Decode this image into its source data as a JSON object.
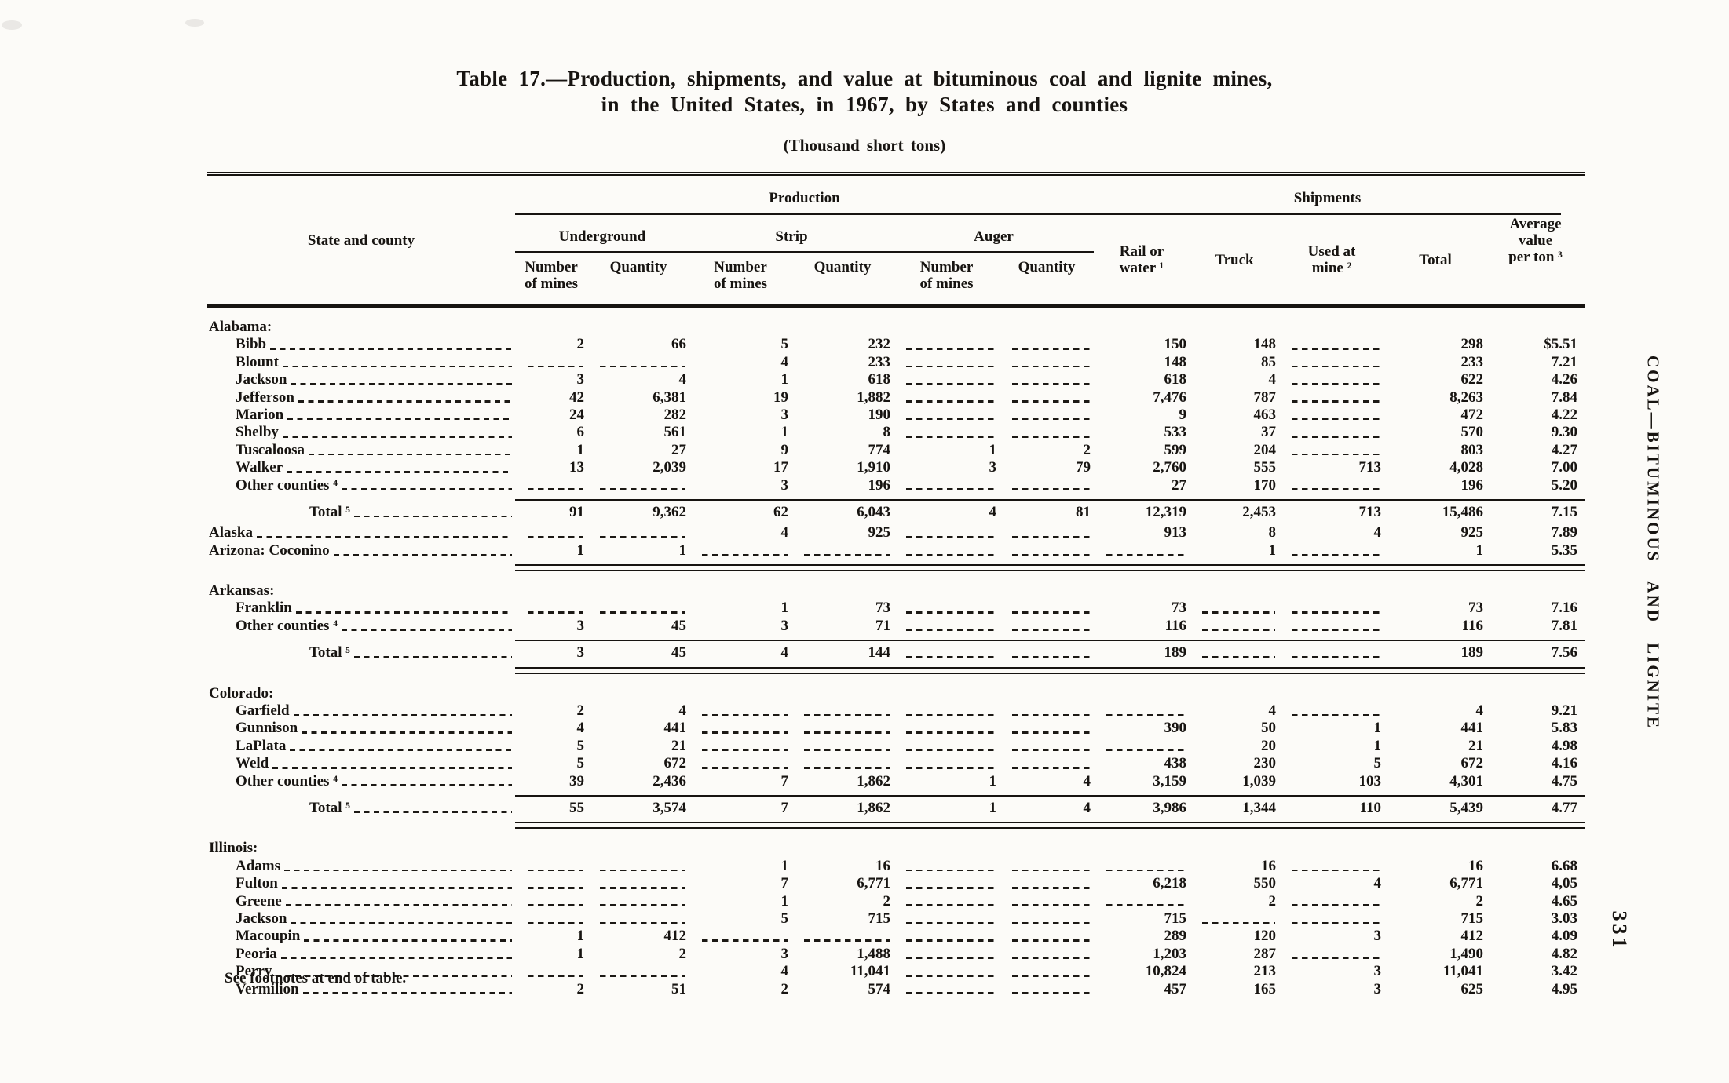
{
  "page": {
    "title_line1": "Table 17.—Production, shipments, and value at bituminous coal and lignite mines,",
    "title_line2": "in the United States, in 1967, by States and counties",
    "subtitle": "(Thousand short tons)",
    "footnote": "See footnotes at end of table.",
    "side_text": "COAL—BITUMINOUS AND LIGNITE",
    "page_number": "331"
  },
  "table": {
    "col_groups": {
      "production": "Production",
      "shipments": "Shipments"
    },
    "headers": {
      "state_county": "State and county",
      "underground": "Underground",
      "strip": "Strip",
      "auger": "Auger",
      "number_of_mines": "Number\nof mines",
      "quantity": "Quantity",
      "rail_or_water": "Rail or\nwater ¹",
      "truck": "Truck",
      "used_at_mine": "Used at\nmine ²",
      "total": "Total",
      "avg_value": "Average\nvalue\nper ton ³"
    },
    "column_keys": [
      "ug_mines",
      "ug_quantity",
      "strip_mines",
      "strip_quantity",
      "auger_mines",
      "auger_quantity",
      "rail_or_water",
      "truck",
      "used_at_mine",
      "total",
      "avg_value"
    ],
    "rows": [
      {
        "label": "Alabama:",
        "cls": "state",
        "indent": 0,
        "leader": false,
        "cells": []
      },
      {
        "label": "Bibb",
        "indent": 1,
        "leader": true,
        "cells": [
          "2",
          "66",
          "5",
          "232",
          "",
          "",
          "150",
          "148",
          "",
          "298",
          "$5.51"
        ]
      },
      {
        "label": "Blount",
        "indent": 1,
        "leader": true,
        "cells": [
          "",
          "",
          "4",
          "233",
          "",
          "",
          "148",
          "85",
          "",
          "233",
          "7.21"
        ]
      },
      {
        "label": "Jackson",
        "indent": 1,
        "leader": true,
        "cells": [
          "3",
          "4",
          "1",
          "618",
          "",
          "",
          "618",
          "4",
          "",
          "622",
          "4.26"
        ]
      },
      {
        "label": "Jefferson",
        "indent": 1,
        "leader": true,
        "cells": [
          "42",
          "6,381",
          "19",
          "1,882",
          "",
          "",
          "7,476",
          "787",
          "",
          "8,263",
          "7.84"
        ]
      },
      {
        "label": "Marion",
        "indent": 1,
        "leader": true,
        "cells": [
          "24",
          "282",
          "3",
          "190",
          "",
          "",
          "9",
          "463",
          "",
          "472",
          "4.22"
        ]
      },
      {
        "label": "Shelby",
        "indent": 1,
        "leader": true,
        "cells": [
          "6",
          "561",
          "1",
          "8",
          "",
          "",
          "533",
          "37",
          "",
          "570",
          "9.30"
        ]
      },
      {
        "label": "Tuscaloosa",
        "indent": 1,
        "leader": true,
        "cells": [
          "1",
          "27",
          "9",
          "774",
          "1",
          "2",
          "599",
          "204",
          "",
          "803",
          "4.27"
        ]
      },
      {
        "label": "Walker",
        "indent": 1,
        "leader": true,
        "cells": [
          "13",
          "2,039",
          "17",
          "1,910",
          "3",
          "79",
          "2,760",
          "555",
          "713",
          "4,028",
          "7.00"
        ]
      },
      {
        "label": "Other counties ⁴",
        "indent": 1,
        "leader": true,
        "cells": [
          "",
          "",
          "3",
          "196",
          "",
          "",
          "27",
          "170",
          "",
          "196",
          "5.20"
        ]
      },
      {
        "label": "Total ⁵",
        "cls": "total",
        "indent": 2,
        "leader": true,
        "rule_above": "single",
        "cells": [
          "91",
          "9,362",
          "62",
          "6,043",
          "4",
          "81",
          "12,319",
          "2,453",
          "713",
          "15,486",
          "7.15"
        ]
      },
      {
        "label": "Alaska",
        "indent": 0,
        "leader": true,
        "cells": [
          "",
          "",
          "4",
          "925",
          "",
          "",
          "913",
          "8",
          "4",
          "925",
          "7.89"
        ]
      },
      {
        "label": "Arizona: Coconino",
        "indent": 0,
        "leader": true,
        "rule_below": "double",
        "cells": [
          "1",
          "1",
          "",
          "",
          "",
          "",
          "",
          "1",
          "",
          "1",
          "5.35"
        ]
      },
      {
        "label": "Arkansas:",
        "cls": "state",
        "indent": 0,
        "leader": false,
        "cells": []
      },
      {
        "label": "Franklin",
        "indent": 1,
        "leader": true,
        "cells": [
          "",
          "",
          "1",
          "73",
          "",
          "",
          "73",
          "",
          "",
          "73",
          "7.16"
        ]
      },
      {
        "label": "Other counties ⁴",
        "indent": 1,
        "leader": true,
        "cells": [
          "3",
          "45",
          "3",
          "71",
          "",
          "",
          "116",
          "",
          "",
          "116",
          "7.81"
        ]
      },
      {
        "label": "Total ⁵",
        "cls": "total",
        "indent": 2,
        "leader": true,
        "rule_above": "single",
        "rule_below": "double",
        "cells": [
          "3",
          "45",
          "4",
          "144",
          "",
          "",
          "189",
          "",
          "",
          "189",
          "7.56"
        ]
      },
      {
        "label": "Colorado:",
        "cls": "state",
        "indent": 0,
        "leader": false,
        "cells": []
      },
      {
        "label": "Garfield",
        "indent": 1,
        "leader": true,
        "cells": [
          "2",
          "4",
          "",
          "",
          "",
          "",
          "",
          "4",
          "",
          "4",
          "9.21"
        ]
      },
      {
        "label": "Gunnison",
        "indent": 1,
        "leader": true,
        "cells": [
          "4",
          "441",
          "",
          "",
          "",
          "",
          "390",
          "50",
          "1",
          "441",
          "5.83"
        ]
      },
      {
        "label": "LaPlata",
        "indent": 1,
        "leader": true,
        "cells": [
          "5",
          "21",
          "",
          "",
          "",
          "",
          "",
          "20",
          "1",
          "21",
          "4.98"
        ]
      },
      {
        "label": "Weld",
        "indent": 1,
        "leader": true,
        "cells": [
          "5",
          "672",
          "",
          "",
          "",
          "",
          "438",
          "230",
          "5",
          "672",
          "4.16"
        ]
      },
      {
        "label": "Other counties ⁴",
        "indent": 1,
        "leader": true,
        "cells": [
          "39",
          "2,436",
          "7",
          "1,862",
          "1",
          "4",
          "3,159",
          "1,039",
          "103",
          "4,301",
          "4.75"
        ]
      },
      {
        "label": "Total ⁵",
        "cls": "total",
        "indent": 2,
        "leader": true,
        "rule_above": "single",
        "rule_below": "double",
        "cells": [
          "55",
          "3,574",
          "7",
          "1,862",
          "1",
          "4",
          "3,986",
          "1,344",
          "110",
          "5,439",
          "4.77"
        ]
      },
      {
        "label": "Illinois:",
        "cls": "state",
        "indent": 0,
        "leader": false,
        "cells": []
      },
      {
        "label": "Adams",
        "indent": 1,
        "leader": true,
        "cells": [
          "",
          "",
          "1",
          "16",
          "",
          "",
          "",
          "16",
          "",
          "16",
          "6.68"
        ]
      },
      {
        "label": "Fulton",
        "indent": 1,
        "leader": true,
        "cells": [
          "",
          "",
          "7",
          "6,771",
          "",
          "",
          "6,218",
          "550",
          "4",
          "6,771",
          "4,05"
        ]
      },
      {
        "label": "Greene",
        "indent": 1,
        "leader": true,
        "cells": [
          "",
          "",
          "1",
          "2",
          "",
          "",
          "",
          "2",
          "",
          "2",
          "4.65"
        ]
      },
      {
        "label": "Jackson",
        "indent": 1,
        "leader": true,
        "cells": [
          "",
          "",
          "5",
          "715",
          "",
          "",
          "715",
          "",
          "",
          "715",
          "3.03"
        ]
      },
      {
        "label": "Macoupin",
        "indent": 1,
        "leader": true,
        "cells": [
          "1",
          "412",
          "",
          "",
          "",
          "",
          "289",
          "120",
          "3",
          "412",
          "4.09"
        ]
      },
      {
        "label": "Peoria",
        "indent": 1,
        "leader": true,
        "cells": [
          "1",
          "2",
          "3",
          "1,488",
          "",
          "",
          "1,203",
          "287",
          "",
          "1,490",
          "4.82"
        ]
      },
      {
        "label": "Perry",
        "indent": 1,
        "leader": true,
        "cells": [
          "",
          "",
          "4",
          "11,041",
          "",
          "",
          "10,824",
          "213",
          "3",
          "11,041",
          "3.42"
        ]
      },
      {
        "label": "Vermilion",
        "indent": 1,
        "leader": true,
        "cells": [
          "2",
          "51",
          "2",
          "574",
          "",
          "",
          "457",
          "165",
          "3",
          "625",
          "4.95"
        ]
      }
    ]
  }
}
